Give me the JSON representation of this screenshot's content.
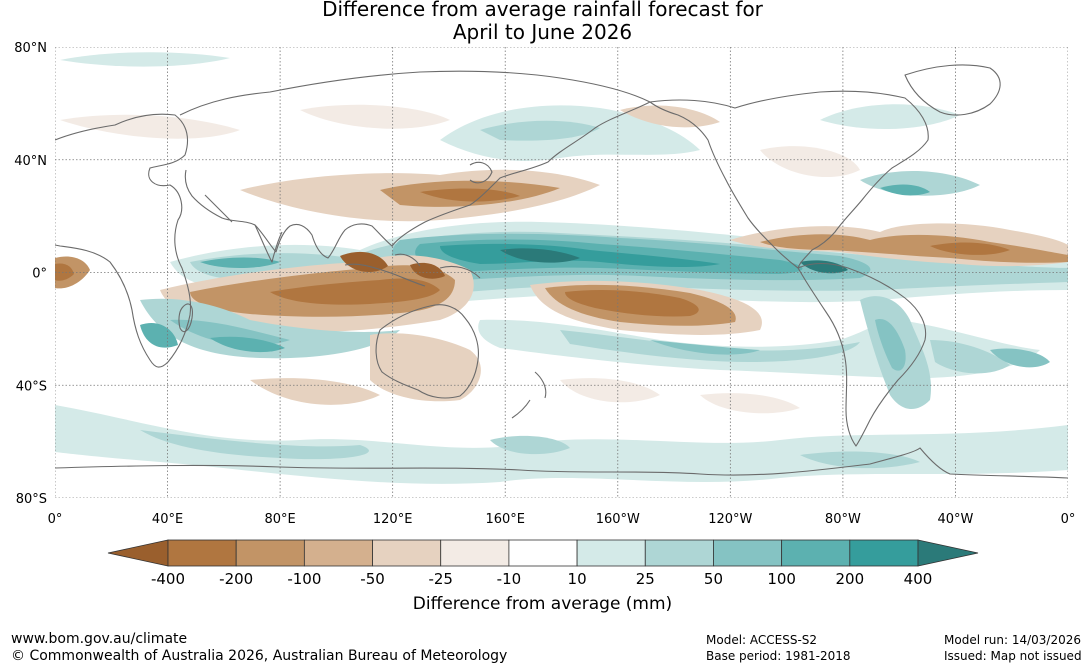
{
  "title": {
    "line1": "Difference from average rainfall forecast for",
    "line2": "April to June 2026"
  },
  "map": {
    "lat_labels": [
      "80°N",
      "40°N",
      "0°",
      "40°S",
      "80°S"
    ],
    "lon_labels": [
      "0°",
      "40°E",
      "80°E",
      "120°E",
      "160°E",
      "160°W",
      "120°W",
      "80°W",
      "40°W",
      "0°"
    ],
    "anomaly_regions": [
      {
        "name": "central-pacific-wet",
        "level": 400
      },
      {
        "name": "south-pacific-dry",
        "level": -200
      },
      {
        "name": "maritime-continent-dry",
        "level": -200
      },
      {
        "name": "indian-ocean-dry",
        "level": -100
      },
      {
        "name": "atlantic-itcz-dry",
        "level": -100
      },
      {
        "name": "southern-ocean-wet",
        "level": 25
      }
    ]
  },
  "legend": {
    "title": "Difference from average (mm)",
    "tick_labels": [
      "-400",
      "-200",
      "-100",
      "-50",
      "-25",
      "-10",
      "10",
      "25",
      "50",
      "100",
      "200",
      "400"
    ],
    "colors": [
      "#9a5f2d",
      "#b07640",
      "#c29466",
      "#d4b08e",
      "#e6d2c0",
      "#f3ebe5",
      "#ffffff",
      "#d4eae8",
      "#aed6d5",
      "#85c3c3",
      "#5cb1b0",
      "#359d9c",
      "#2b7a79"
    ]
  },
  "footer": {
    "url": "www.bom.gov.au/climate",
    "copyright": "© Commonwealth of Australia 2026, Australian Bureau of Meteorology",
    "model": "Model: ACCESS-S2",
    "base_period": "Base period: 1981-2018",
    "model_run": "Model run: 14/03/2026",
    "issued": "Issued: Map not issued"
  }
}
